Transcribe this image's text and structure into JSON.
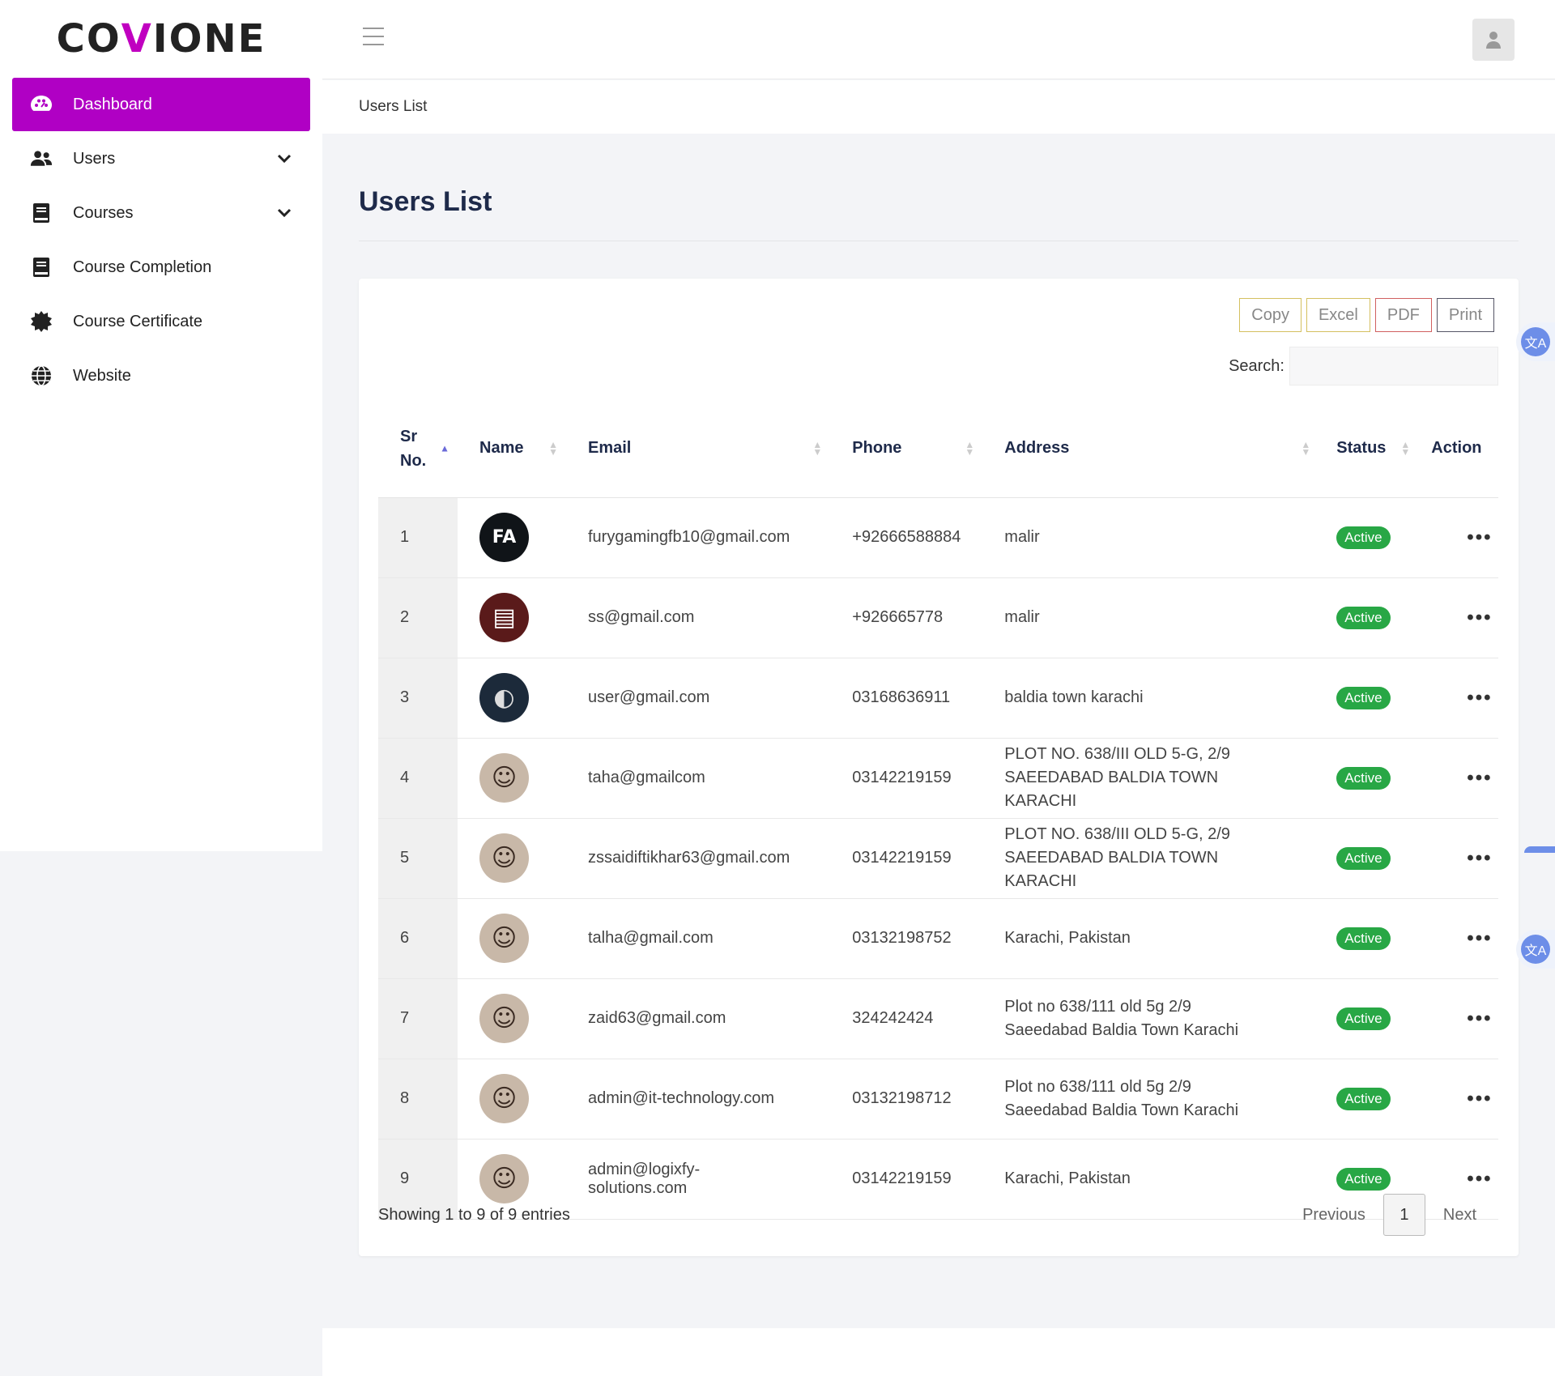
{
  "brand": {
    "logo_pre": "CO",
    "logo_v": "V",
    "logo_post": "IONE",
    "accent": "#b000c4"
  },
  "sidebar": {
    "items": [
      {
        "label": "Dashboard",
        "icon": "palette-icon",
        "active": true
      },
      {
        "label": "Users",
        "icon": "users-icon"
      },
      {
        "label": "Courses",
        "icon": "book-icon"
      },
      {
        "label": "Course Completion",
        "icon": "book-icon"
      },
      {
        "label": "Course Certificate",
        "icon": "badge-icon"
      },
      {
        "label": "Website",
        "icon": "globe-icon"
      }
    ]
  },
  "breadcrumb": "Users List",
  "page_title": "Users List",
  "export": {
    "copy": "Copy",
    "excel": "Excel",
    "pdf": "PDF",
    "print": "Print"
  },
  "search": {
    "label": "Search:",
    "value": "",
    "placeholder": ""
  },
  "table": {
    "headers": {
      "sr": "Sr No.",
      "name": "Name",
      "email": "Email",
      "phone": "Phone",
      "address": "Address",
      "status": "Status",
      "action": "Action"
    },
    "rows": [
      {
        "sr": "1",
        "email": "furygamingfb10@gmail.com",
        "phone": "+92666588884",
        "address": "malir",
        "status": "Active"
      },
      {
        "sr": "2",
        "email": "ss@gmail.com",
        "phone": "+926665778",
        "address": "malir",
        "status": "Active"
      },
      {
        "sr": "3",
        "email": "user@gmail.com",
        "phone": "03168636911",
        "address": "baldia town karachi",
        "status": "Active"
      },
      {
        "sr": "4",
        "email": "taha@gmailcom",
        "phone": "03142219159",
        "address": "PLOT NO. 638/III OLD 5-G, 2/9 SAEEDABAD BALDIA TOWN KARACHI",
        "status": "Active"
      },
      {
        "sr": "5",
        "email": "zssaidiftikhar63@gmail.com",
        "phone": "03142219159",
        "address": "PLOT NO. 638/III OLD 5-G, 2/9 SAEEDABAD BALDIA TOWN KARACHI",
        "status": "Active"
      },
      {
        "sr": "6",
        "email": "talha@gmail.com",
        "phone": "03132198752",
        "address": "Karachi, Pakistan",
        "status": "Active"
      },
      {
        "sr": "7",
        "email": "zaid63@gmail.com",
        "phone": "324242424",
        "address": "Plot no 638/111 old 5g 2/9 Saeedabad Baldia Town Karachi",
        "status": "Active"
      },
      {
        "sr": "8",
        "email": "admin@it-technology.com",
        "phone": "03132198712",
        "address": "Plot no 638/111 old 5g 2/9 Saeedabad Baldia Town Karachi",
        "status": "Active"
      },
      {
        "sr": "9",
        "email": "admin@logixfy-solutions.com",
        "phone": "03142219159",
        "address": "Karachi, Pakistan",
        "status": "Active"
      }
    ]
  },
  "footer": {
    "showing": "Showing 1 to 9 of 9 entries",
    "prev": "Previous",
    "page": "1",
    "next": "Next"
  },
  "colors": {
    "active_badge": "#28a745",
    "title": "#1e2a4a"
  }
}
